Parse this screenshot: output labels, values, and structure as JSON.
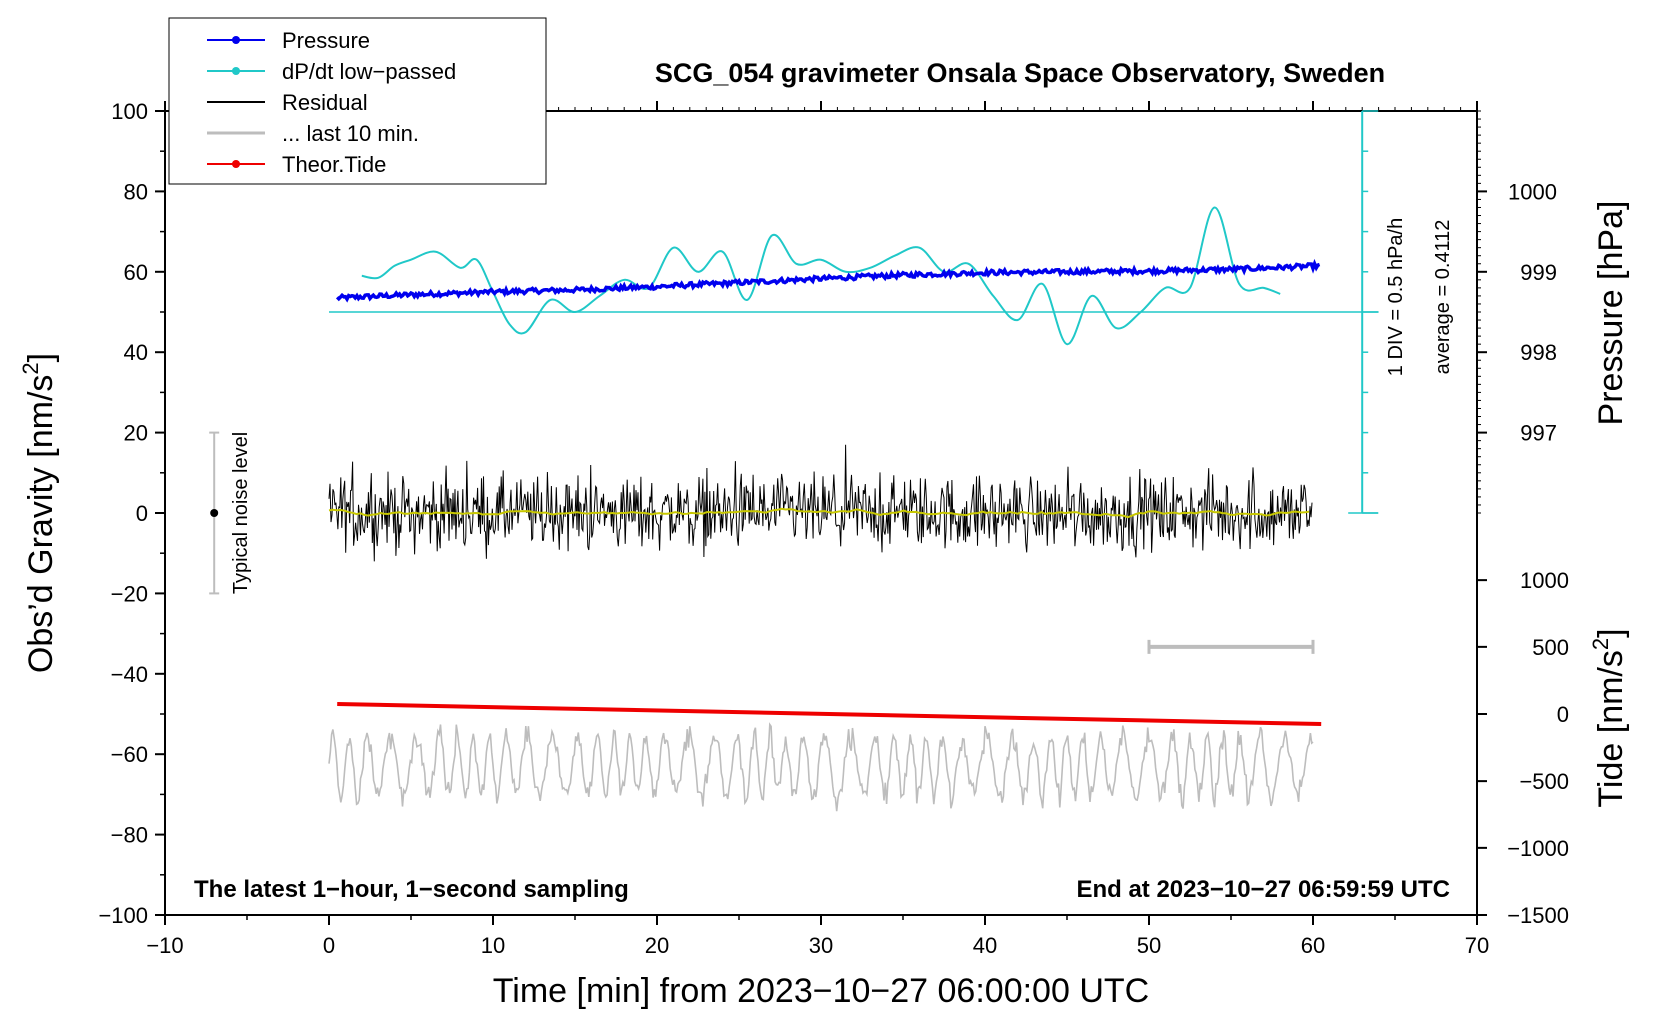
{
  "chart_data": {
    "type": "line",
    "title": "SCG_054 gravimeter Onsala Space Observatory, Sweden",
    "xlabel": "Time [min] from 2023−10−27 06:00:00 UTC",
    "ylabel_left": "Obs’d Gravity [nm/s",
    "ylabel_left_sup": "2",
    "ylabel_left_end": "]",
    "ylabel_right_pressure": "Pressure [hPa]",
    "ylabel_right_tide": "Tide [nm/s",
    "ylabel_right_tide_sup": "2",
    "ylabel_right_tide_end": "]",
    "xlim": [
      -10,
      70
    ],
    "ylim": [
      -100,
      100
    ],
    "x_ticks": [
      -10,
      0,
      10,
      20,
      30,
      40,
      50,
      60,
      70
    ],
    "x_tick_labels": [
      "−10",
      "0",
      "10",
      "20",
      "30",
      "40",
      "50",
      "60",
      "70"
    ],
    "y_ticks": [
      -100,
      -80,
      -60,
      -40,
      -20,
      0,
      20,
      40,
      60,
      80,
      100
    ],
    "y_tick_labels": [
      "−100",
      "−80",
      "−60",
      "−40",
      "−20",
      "0",
      "20",
      "40",
      "60",
      "80",
      "100"
    ],
    "pressure_ticks": [
      {
        "hpa": 997,
        "label": "997",
        "gravity_pos": 20
      },
      {
        "hpa": 998,
        "label": "998",
        "gravity_pos": 40
      },
      {
        "hpa": 999,
        "label": "999",
        "gravity_pos": 60
      },
      {
        "hpa": 1000,
        "label": "1000",
        "gravity_pos": 80
      }
    ],
    "tide_ticks": [
      {
        "value": 1000,
        "label": "1000",
        "gravity_pos": -16.7
      },
      {
        "value": 500,
        "label": "500",
        "gravity_pos": -33.3
      },
      {
        "value": 0,
        "label": "0",
        "gravity_pos": -50
      },
      {
        "value": -500,
        "label": "−500",
        "gravity_pos": -66.7
      },
      {
        "value": -1000,
        "label": "−1000",
        "gravity_pos": -83.3
      },
      {
        "value": -1500,
        "label": "−1500",
        "gravity_pos": -100
      }
    ],
    "legend_position": "top-left",
    "legend": [
      {
        "label": "Pressure",
        "color": "#0000ee",
        "marker": true
      },
      {
        "label": "dP/dt low−passed",
        "color": "#20c8c8",
        "marker": true
      },
      {
        "label": "Residual",
        "color": "#000000",
        "marker": false
      },
      {
        "label": "... last 10 min.",
        "color": "#bdbdbd",
        "marker": false
      },
      {
        "label": "Theor.Tide",
        "color": "#ee0000",
        "marker": true
      }
    ],
    "series": [
      {
        "name": "Pressure",
        "color": "#0000ee",
        "x": [
          0.5,
          5,
          10,
          15,
          20,
          25,
          30,
          35,
          40,
          45,
          50,
          55,
          60.5
        ],
        "y": [
          53.5,
          54.3,
          55.0,
          55.5,
          56.3,
          57.3,
          58.3,
          59.2,
          59.8,
          60.0,
          60.2,
          60.6,
          61.5
        ]
      },
      {
        "name": "dP/dt low−passed",
        "color": "#20c8c8",
        "x": [
          2,
          3,
          4,
          5,
          6.5,
          8,
          9,
          10,
          11,
          12,
          13.5,
          15,
          16.5,
          18,
          19.5,
          21,
          22.5,
          24,
          25.5,
          27,
          28.5,
          30,
          31.5,
          33,
          34.5,
          36,
          37.5,
          39,
          40.5,
          42,
          43.5,
          45,
          46.5,
          48,
          49.5,
          51,
          52.5,
          54,
          55.5,
          57,
          58
        ],
        "y": [
          59,
          58.5,
          61.5,
          63,
          65,
          61,
          63,
          55,
          47,
          45,
          53,
          50,
          54,
          58,
          56,
          66,
          60,
          65,
          53,
          69,
          62,
          63,
          60,
          61,
          64,
          66,
          60,
          62,
          54,
          48,
          57,
          42,
          54,
          46,
          50,
          56,
          56,
          76,
          57,
          56,
          54.5
        ]
      },
      {
        "name": "Residual",
        "color": "#000000",
        "x_range": [
          0,
          60
        ],
        "y_range": [
          -18,
          17
        ],
        "mean": 0
      },
      {
        "name": "Residual smoothed",
        "color": "#c8c800",
        "x_range": [
          0,
          60
        ],
        "mean": 0
      },
      {
        "name": "Theor.Tide",
        "color": "#ee0000",
        "x": [
          0.5,
          60.5
        ],
        "y": [
          -47.5,
          -52.5
        ]
      },
      {
        "name": "... last 10 min.",
        "color": "#bdbdbd",
        "x_range": [
          0,
          60
        ],
        "center": -63,
        "y_range": [
          -78,
          -52
        ]
      }
    ],
    "average_line_y": 50,
    "div_scale_label": "1 DIV = 0.5 hPa/h",
    "average_label": "average = 0.4112",
    "noise_bar": {
      "x": -7,
      "low": -20,
      "high": 20,
      "label": "Typical noise level"
    },
    "ten_min_bar": {
      "x_start": 50,
      "x_end": 60,
      "y": -33.3
    },
    "bottom_left_note": "The latest 1−hour, 1−second sampling",
    "bottom_right_note": "End at 2023−10−27 06:59:59 UTC"
  }
}
